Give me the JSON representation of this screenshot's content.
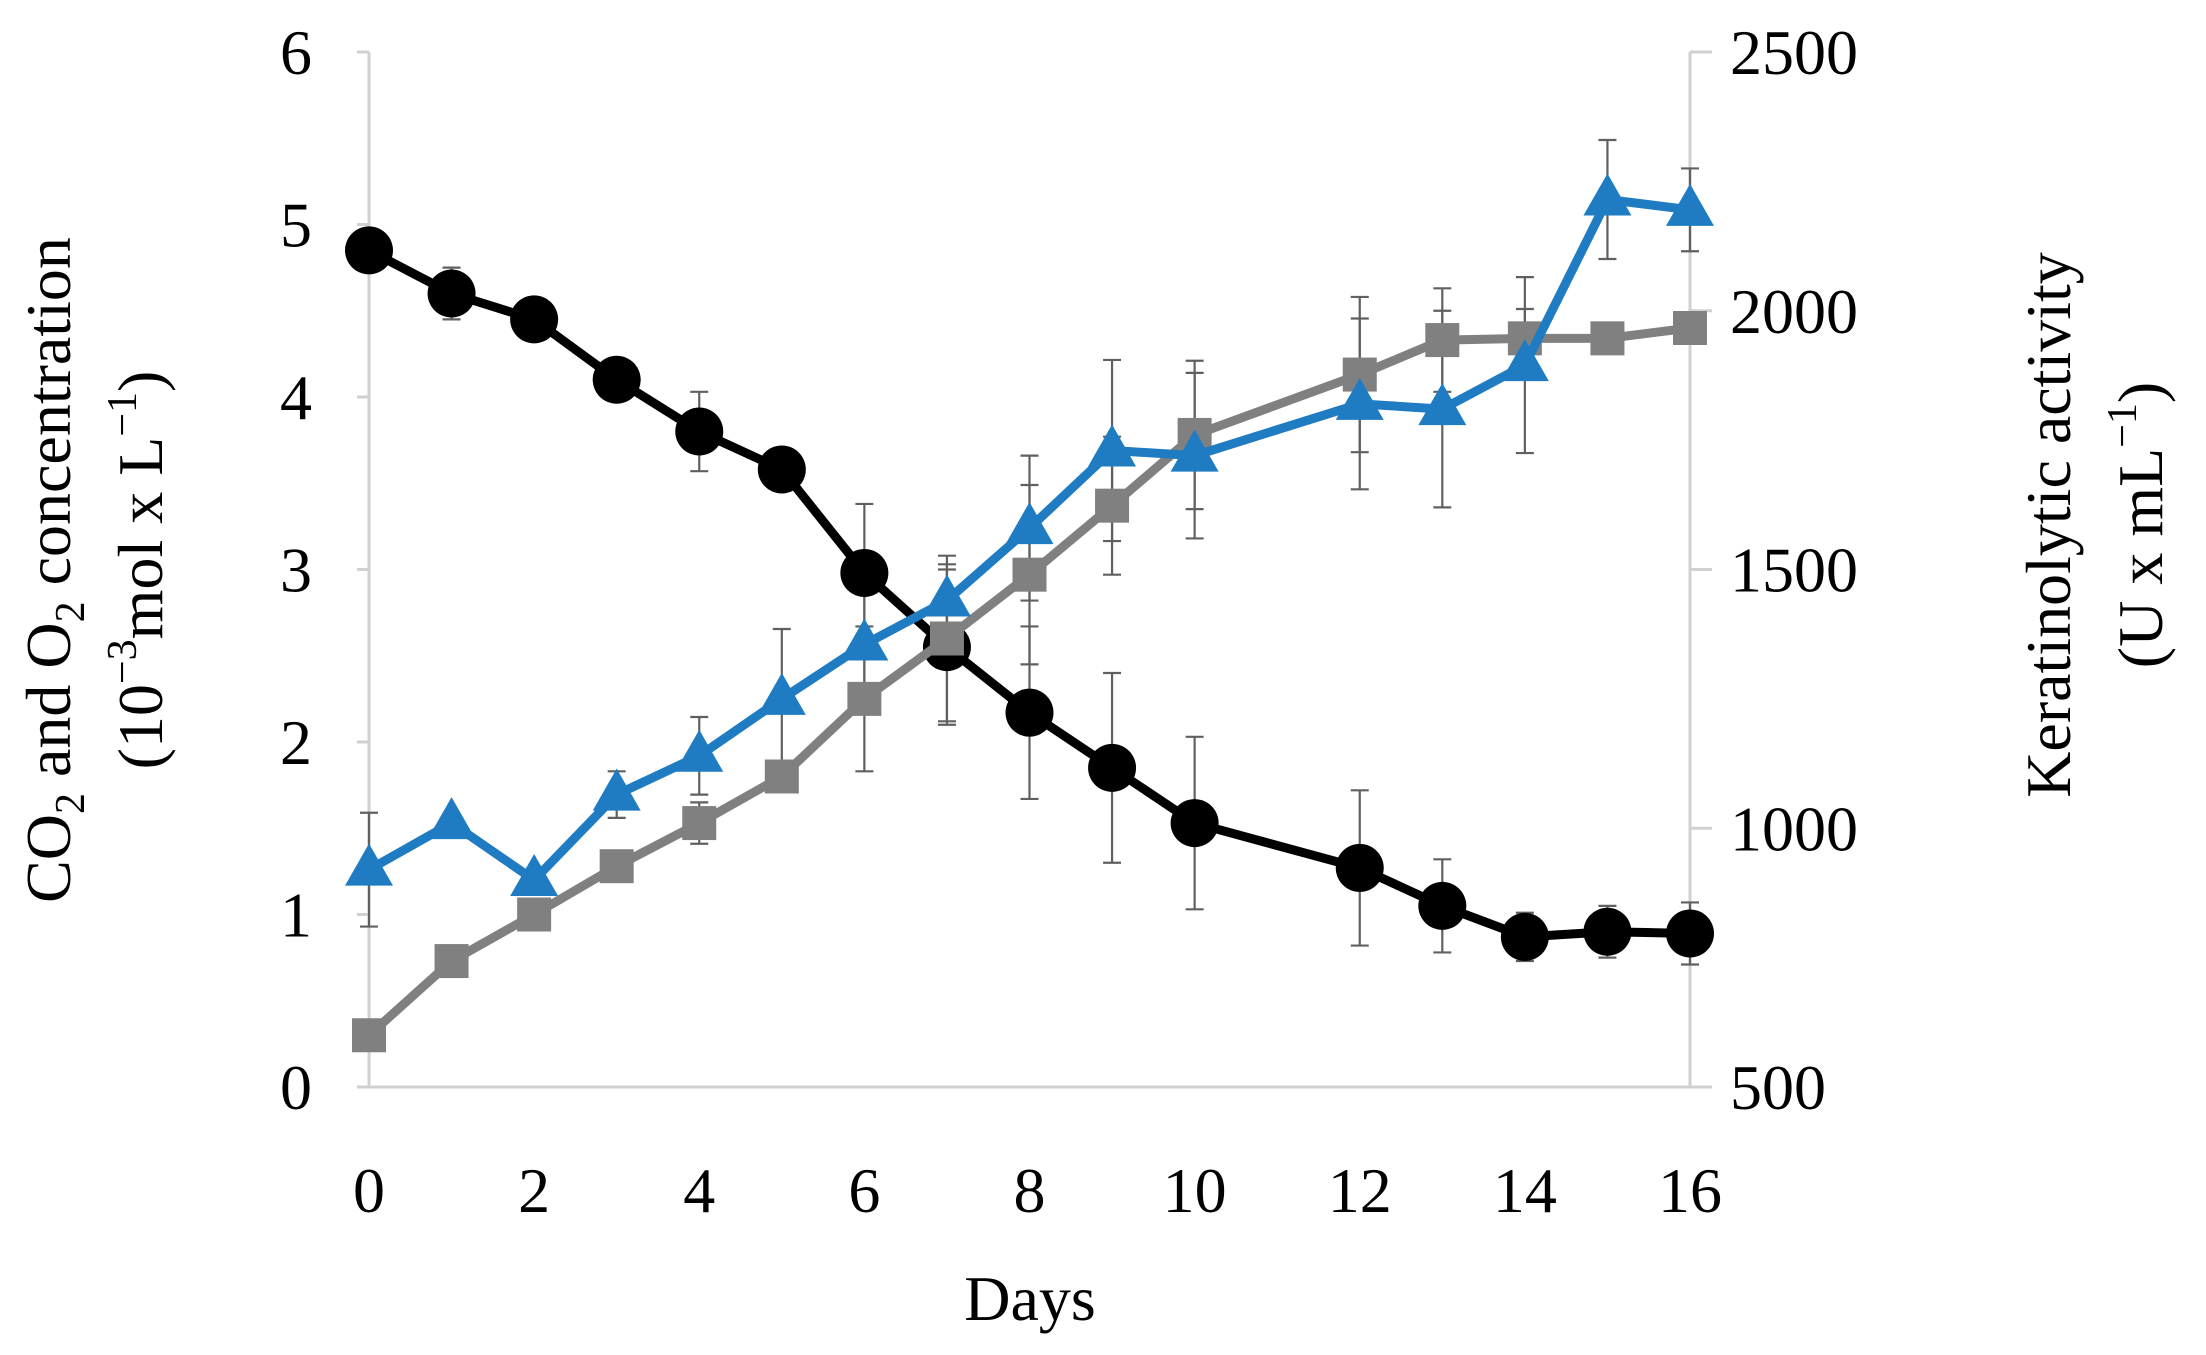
{
  "chart_data": {
    "type": "line",
    "title": "",
    "xlabel": "Days",
    "ylabel_left": {
      "line1": {
        "a": "CO",
        "a_sub": "2",
        "b": " and O",
        "b_sub": "2",
        "c": " concentration"
      },
      "line2": {
        "a": "(10",
        "a_sup": "−3",
        "b": "mol x L",
        "b_sup": "−1",
        "c": ")"
      }
    },
    "ylabel_right": {
      "line1": "Keratinolytic activity",
      "line2": {
        "a": "(U x mL",
        "a_sup": "−1",
        "b": ")"
      }
    },
    "x_ticks": [
      "0",
      "2",
      "4",
      "6",
      "8",
      "10",
      "12",
      "14",
      "16"
    ],
    "xlim": [
      0,
      16
    ],
    "y_left_ticks": [
      "0",
      "1",
      "2",
      "3",
      "4",
      "5",
      "6"
    ],
    "ylim_left": [
      0,
      6
    ],
    "y_right_ticks": [
      "500",
      "1000",
      "1500",
      "2000",
      "2500"
    ],
    "ylim_right": [
      500,
      2500
    ],
    "grid": false,
    "series": [
      {
        "name": "O2",
        "axis": "left",
        "marker": "circle",
        "color": "#000000",
        "x": [
          0,
          1,
          2,
          3,
          4,
          5,
          6,
          7,
          8,
          9,
          10,
          12,
          13,
          14,
          15,
          16
        ],
        "y": [
          4.85,
          4.6,
          4.45,
          4.1,
          3.8,
          3.58,
          2.98,
          2.55,
          2.17,
          1.85,
          1.53,
          1.27,
          1.05,
          0.87,
          0.9,
          0.89
        ],
        "err": [
          0,
          0.15,
          0,
          0.12,
          0.23,
          0,
          0.4,
          0.45,
          0.5,
          0.55,
          0.5,
          0.45,
          0.27,
          0.14,
          0.15,
          0.18
        ]
      },
      {
        "name": "CO2",
        "axis": "left",
        "marker": "square",
        "color": "#808080",
        "x": [
          0,
          1,
          2,
          3,
          4,
          5,
          6,
          7,
          8,
          9,
          10,
          12,
          13,
          14,
          15,
          16
        ],
        "y": [
          0.3,
          0.73,
          1.0,
          1.28,
          1.53,
          1.8,
          2.25,
          2.6,
          2.97,
          3.37,
          3.78,
          4.13,
          4.33,
          4.34,
          4.34,
          4.4
        ],
        "err": [
          0,
          0,
          0,
          0,
          0.12,
          0,
          0.42,
          0.48,
          0.52,
          0.4,
          0.43,
          0.45,
          0.3,
          0.17,
          0,
          0
        ]
      },
      {
        "name": "Keratinolytic activity",
        "axis": "right",
        "marker": "triangle",
        "color": "#1F7CC2",
        "x": [
          0,
          1,
          2,
          3,
          4,
          5,
          6,
          7,
          8,
          9,
          10,
          12,
          13,
          14,
          15,
          16
        ],
        "y": [
          920,
          1010,
          900,
          1065,
          1140,
          1250,
          1355,
          1440,
          1580,
          1730,
          1720,
          1820,
          1810,
          1895,
          2215,
          2195
        ],
        "err": [
          110,
          0,
          0,
          45,
          75,
          135,
          120,
          70,
          140,
          175,
          160,
          165,
          190,
          170,
          115,
          80
        ]
      }
    ]
  }
}
